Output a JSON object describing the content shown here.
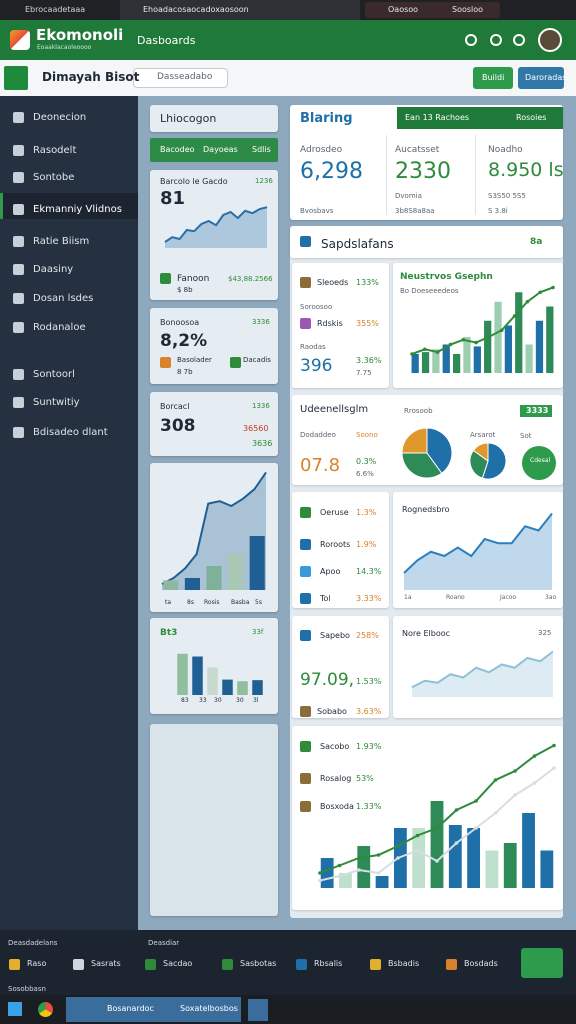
{
  "browser": {
    "tabs": [
      "Ebrocaadetaaa",
      "Ehoadacosaocadoxaosoon",
      "Oaosoo",
      "Soosloo"
    ]
  },
  "header": {
    "logo": "Ekomonoli",
    "logo_sub": "Eoaaklacaoleoooo",
    "back": "Dasboards"
  },
  "toolbar": {
    "title": "Dimayah Bisot",
    "search": "Dasseadabo",
    "buttons": [
      "Buildi",
      "Daroradas"
    ]
  },
  "sidebar": {
    "items": [
      "Deonecion",
      "Rasodelt",
      "Sontobe",
      "Ekmanniy Vlidnos",
      "Ratie Biism",
      "Daasiny",
      "Dosan lsdes",
      "Rodanaloe",
      "Sontoorl",
      "Suntwitiy",
      "Bdisadeo dlant"
    ]
  },
  "left": {
    "panel": {
      "title": "Lhiocogon",
      "tabs": [
        "Bacodeo",
        "Dayoeas",
        "Sdlis"
      ]
    },
    "card1": {
      "head": "Barcolo le Gacdo",
      "head_value": "1236",
      "big": "81",
      "footer": "Fanoon",
      "footer_value": "$43,88.2566",
      "footer_sub": "$ 8b",
      "chart": {
        "ylim": [
          0,
          80
        ],
        "series": [
          {
            "kind": "area",
            "color": "#2a6fa8",
            "values": [
              10,
              18,
              15,
              30,
              28,
              40,
              45,
              38,
              55,
              60,
              50,
              62,
              58,
              65,
              68
            ]
          }
        ]
      }
    },
    "card2": {
      "head": "Bonoosoa",
      "head_value": "3336",
      "big": "8,2%",
      "footer": "Basolader",
      "footer_value": "Dacadis",
      "footer_sub": "8 7b"
    },
    "card3": {
      "head": "Borcacl",
      "head_value": "1336",
      "big": "308",
      "value": "36560",
      "sub": "3636"
    },
    "card4": {
      "x_labels": [
        "ta",
        "8s",
        "Rosis",
        "Basba",
        "5s"
      ],
      "chart": {
        "ylim": [
          0,
          100
        ],
        "series": [
          {
            "kind": "area",
            "color": "#1f5f94",
            "values": [
              5,
              10,
              18,
              30,
              72,
              74,
              70,
              76,
              84,
              98
            ]
          },
          {
            "kind": "bar",
            "colors": [
              "#8fb8a2",
              "#1f5f94",
              "#7fb09a",
              "#a9c8b4",
              "#1f5f94"
            ],
            "values": [
              8,
              10,
              20,
              30,
              45
            ]
          }
        ]
      }
    },
    "card5": {
      "head": "Bt3",
      "head_value": "33f",
      "x_labels": [
        "83",
        "33",
        "30",
        "30",
        "3l"
      ],
      "chart": {
        "ylim": [
          0,
          100
        ],
        "series": [
          {
            "kind": "bar",
            "colors": [
              "#8fbf9f",
              "#1f5f94",
              "#c8d9cf",
              "#1f5f94",
              "#8fbf9f",
              "#1f5f94"
            ],
            "values": [
              75,
              70,
              50,
              28,
              25,
              27
            ]
          }
        ]
      }
    }
  },
  "kpi": {
    "title": "Blaring",
    "banner": "Ean 13 Rachoes",
    "banner_right": "Rosoies",
    "items": [
      {
        "label": "Adrosdeo",
        "value": "6,298",
        "sub": "Bvosbavs"
      },
      {
        "label": "Aucatsset",
        "value": "2330",
        "sub": "Dvomia",
        "sub2": "3b8S8a8aa"
      },
      {
        "label": "Noadho",
        "value": "8.950 ls",
        "sub": "S3S50 5S5",
        "sub2": "S 3.8i"
      }
    ]
  },
  "panel": {
    "title": "Sapdslafans",
    "badge": "8a",
    "row1": {
      "list": [
        [
          "Sleoeds",
          "133%"
        ],
        [
          "Rdskis",
          "355%"
        ]
      ],
      "note": "Soroosoo",
      "label": "Raodas",
      "big": "396",
      "pct": "3.36%",
      "sub": "7.75",
      "chart_title": "Neustrvos Gsephn",
      "chart_sub": "Bo Doeseeedeos",
      "chart": {
        "ylim": [
          0,
          100
        ],
        "series": [
          {
            "kind": "bar",
            "colors": [
              "#1f6fa8",
              "#2e8b57",
              "#9ccfb0"
            ],
            "values": [
              20,
              22,
              25,
              30,
              20,
              38,
              28,
              55,
              75,
              50,
              85,
              30,
              55,
              70
            ]
          },
          {
            "kind": "line",
            "color": "#2e8b3a",
            "values": [
              20,
              25,
              22,
              30,
              35,
              32,
              38,
              45,
              60,
              75,
              85,
              90
            ]
          }
        ]
      }
    },
    "row2": {
      "title": "Udeenellsglm",
      "label": "Dodaddeo",
      "label_value": "Soono",
      "big": "07.8",
      "pct": "0.3%",
      "sub": "6.6%",
      "pie_title": "Rrosoob",
      "pie2_title": "Arsarot",
      "donut_title": "Sot",
      "tag": "3333",
      "donut_label": "Cdesal",
      "pie1": {
        "colors": [
          "#1f6fa8",
          "#2e8b57",
          "#e0972e"
        ],
        "values": [
          40,
          35,
          25
        ]
      },
      "pie2": {
        "colors": [
          "#1f6fa8",
          "#2e8b57",
          "#e0972e"
        ],
        "values": [
          55,
          30,
          15
        ]
      },
      "donut": {
        "colors": [
          "#2e9a4c"
        ],
        "values": [
          100
        ]
      }
    },
    "row3": {
      "list": [
        [
          "Oeruse",
          "1.3%"
        ],
        [
          "Roroots",
          "1.9%"
        ],
        [
          "Apoo",
          "14.3%"
        ],
        [
          "Tol",
          "3.33%"
        ]
      ],
      "chart_title": "Rognedsbro",
      "x_labels": [
        "1a",
        "Roano",
        "Jacoo",
        "3ao"
      ],
      "chart": {
        "ylim": [
          0,
          100
        ],
        "series": [
          {
            "kind": "area",
            "color": "#2a7fc0",
            "values": [
              20,
              35,
              45,
              40,
              50,
              40,
              60,
              55,
              55,
              75,
              70,
              90
            ]
          }
        ]
      }
    },
    "row4": {
      "list": [
        [
          "Sapebo",
          "258%"
        ],
        [
          "Sobabo",
          "3.63%"
        ]
      ],
      "big": "97.09,",
      "pct": "1.53%",
      "chart_title": "Nore Elbooc",
      "chart_value": "325",
      "chart": {
        "ylim": [
          0,
          80
        ],
        "series": [
          {
            "kind": "area",
            "color": "#8fc0d8",
            "values": [
              15,
              25,
              22,
              35,
              30,
              45,
              38,
              50,
              45,
              60,
              55,
              70
            ]
          }
        ]
      }
    },
    "row5": {
      "list": [
        [
          "Sacobo",
          "1.93%"
        ],
        [
          "Rosalog",
          "53%"
        ],
        [
          "Bosxoda",
          "1.33%"
        ]
      ],
      "chart": {
        "ylim": [
          0,
          100
        ],
        "series": [
          {
            "kind": "bar",
            "colors": [
              "#1f6fa8",
              "#bfe0cc",
              "#2e8b57",
              "#1f6fa8"
            ],
            "values": [
              20,
              10,
              28,
              8,
              40,
              40,
              58,
              42,
              40,
              25,
              30,
              50,
              25
            ]
          },
          {
            "kind": "line",
            "color": "#2e8b3a",
            "values": [
              10,
              15,
              20,
              22,
              28,
              35,
              40,
              52,
              58,
              72,
              78,
              88,
              95
            ]
          },
          {
            "kind": "line",
            "color": "#d6dde3",
            "values": [
              5,
              8,
              12,
              10,
              20,
              25,
              18,
              30,
              40,
              50,
              62,
              70,
              80
            ]
          }
        ]
      }
    }
  },
  "bottom": {
    "left_title": "Deasdadelans",
    "right_title": "Deasdiar",
    "items": [
      "Raso",
      "Sasrats",
      "Sacdao",
      "Sasbotas",
      "Rbsalis",
      "Bsbadis",
      "Bosdads"
    ],
    "footer": "Sosobbasn"
  },
  "taskbar": {
    "apps": [
      "Bosanardoc",
      "Soxatelbosbos"
    ]
  }
}
